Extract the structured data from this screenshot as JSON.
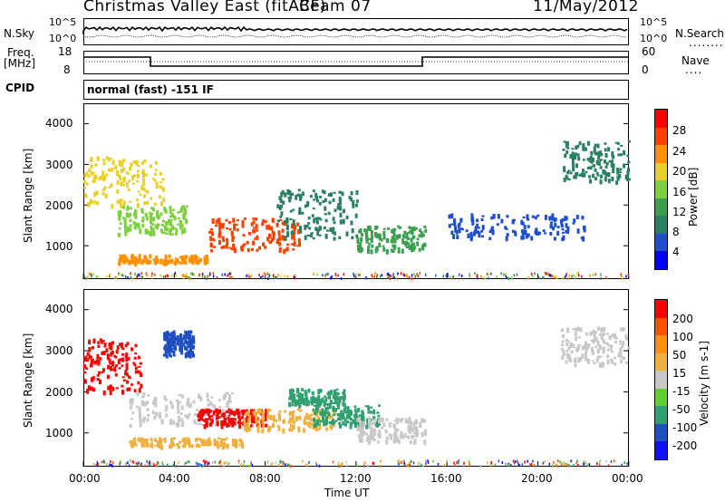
{
  "header": {
    "station": "Christmas Valley East (fitACF)",
    "beam": "Beam 07",
    "date": "11/May/2012"
  },
  "noise_panel": {
    "left_label": "N.Sky",
    "right_label": "N.Search",
    "left_ticks": [
      "10^5",
      "10^0"
    ],
    "right_ticks": [
      "10^5",
      "10^0"
    ]
  },
  "freq_panel": {
    "left_label_top": "Freq.",
    "left_label_bottom": "[MHz]",
    "right_label": "Nave",
    "left_ticks": [
      "18",
      "8"
    ],
    "right_ticks": [
      "60",
      "0"
    ]
  },
  "cpid": {
    "label": "CPID",
    "text": "normal (fast) -151 IF"
  },
  "axes": {
    "ylabel": "Slant Range [km]",
    "xlabel": "Time UT",
    "yticks": [
      "4000",
      "3000",
      "2000",
      "1000"
    ],
    "xticks": [
      "00:00",
      "04:00",
      "08:00",
      "12:00",
      "16:00",
      "20:00",
      "00:00"
    ]
  },
  "colorbars": {
    "power": {
      "label": "Power [dB]",
      "ticks": [
        "28",
        "24",
        "20",
        "16",
        "12",
        "8",
        "4"
      ],
      "colors": [
        "#0000ff",
        "#1f4fd0",
        "#2a8060",
        "#3aa050",
        "#7fd040",
        "#e8d020",
        "#ff9000",
        "#ff4000",
        "#ff0000"
      ]
    },
    "velocity": {
      "label": "Velocity [m s-1]",
      "ticks": [
        "200",
        "100",
        "50",
        "15",
        "-15",
        "-50",
        "-100",
        "-200"
      ],
      "colors": [
        "#1010ff",
        "#2050c0",
        "#30a070",
        "#60d030",
        "#c8c8c8",
        "#f0b040",
        "#ff9000",
        "#ff5000",
        "#ff0000"
      ]
    }
  },
  "chart_data": [
    {
      "type": "heatmap",
      "title": "Power",
      "xlabel": "Time UT",
      "ylabel": "Slant Range [km]",
      "xlim": [
        "00:00",
        "24:00"
      ],
      "ylim": [
        180,
        4500
      ],
      "colorbar_label": "Power [dB]",
      "blobs": [
        {
          "t0": 0.0,
          "t1": 3.5,
          "r0": 2000,
          "r1": 3200,
          "value": 20
        },
        {
          "t0": 1.5,
          "t1": 4.5,
          "r0": 1300,
          "r1": 2000,
          "value": 16
        },
        {
          "t0": 5.5,
          "t1": 9.5,
          "r0": 900,
          "r1": 1700,
          "value": 28
        },
        {
          "t0": 8.5,
          "t1": 12.0,
          "r0": 1200,
          "r1": 2400,
          "value": 8
        },
        {
          "t0": 12.0,
          "t1": 15.0,
          "r0": 900,
          "r1": 1500,
          "value": 12
        },
        {
          "t0": 1.5,
          "t1": 5.5,
          "r0": 600,
          "r1": 800,
          "value": 24
        },
        {
          "t0": 21.0,
          "t1": 24.0,
          "r0": 2600,
          "r1": 3600,
          "value": 8
        },
        {
          "t0": 16.0,
          "t1": 22.0,
          "r0": 1200,
          "r1": 1800,
          "value": 4
        }
      ]
    },
    {
      "type": "heatmap",
      "title": "Velocity",
      "xlabel": "Time UT",
      "ylabel": "Slant Range [km]",
      "xlim": [
        "00:00",
        "24:00"
      ],
      "ylim": [
        180,
        4500
      ],
      "colorbar_label": "Velocity [m s-1]",
      "blobs": [
        {
          "t0": 0.0,
          "t1": 2.5,
          "r0": 2000,
          "r1": 3300,
          "value": 200
        },
        {
          "t0": 2.0,
          "t1": 6.5,
          "r0": 1200,
          "r1": 2000,
          "value": 0
        },
        {
          "t0": 2.0,
          "t1": 7.0,
          "r0": 700,
          "r1": 900,
          "value": 30
        },
        {
          "t0": 5.0,
          "t1": 8.0,
          "r0": 1200,
          "r1": 1600,
          "value": 200
        },
        {
          "t0": 7.0,
          "t1": 11.0,
          "r0": 1100,
          "r1": 1600,
          "value": 30
        },
        {
          "t0": 9.0,
          "t1": 11.5,
          "r0": 1700,
          "r1": 2100,
          "value": -60
        },
        {
          "t0": 10.0,
          "t1": 13.0,
          "r0": 1200,
          "r1": 1700,
          "value": -60
        },
        {
          "t0": 12.0,
          "t1": 15.0,
          "r0": 800,
          "r1": 1400,
          "value": 0
        },
        {
          "t0": 3.5,
          "t1": 4.8,
          "r0": 2900,
          "r1": 3500,
          "value": -200
        },
        {
          "t0": 21.0,
          "t1": 24.0,
          "r0": 2700,
          "r1": 3600,
          "value": 0
        }
      ]
    }
  ]
}
